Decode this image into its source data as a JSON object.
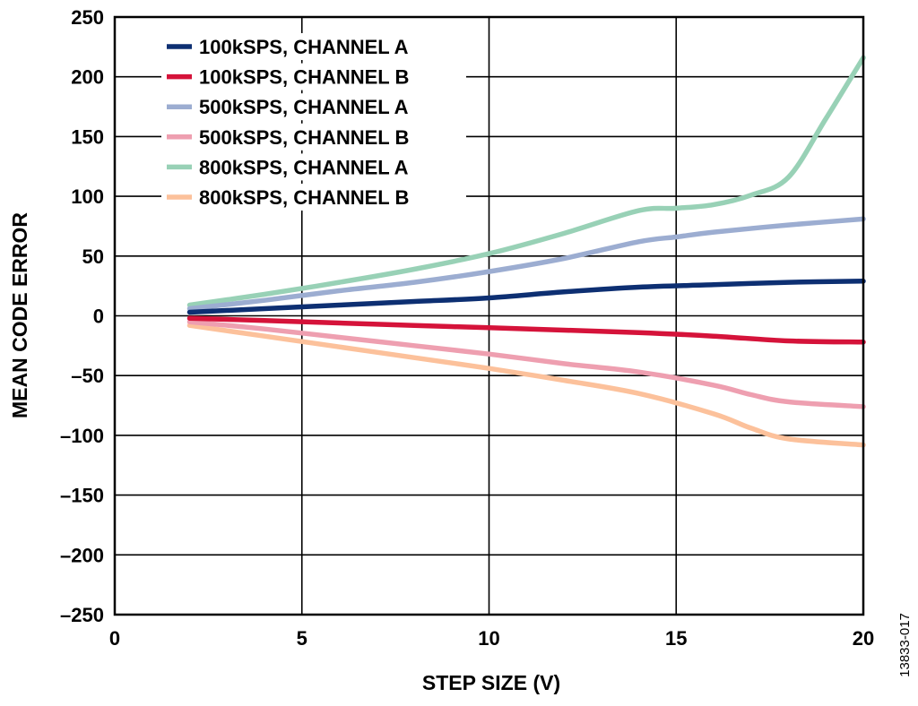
{
  "figure_id": "13833-017",
  "chart_data": {
    "type": "line",
    "xlabel": "STEP SIZE (V)",
    "ylabel": "MEAN CODE ERROR",
    "xlim": [
      0,
      20
    ],
    "ylim": [
      -250,
      250
    ],
    "xticks": [
      0,
      5,
      10,
      15,
      20
    ],
    "yticks": [
      250,
      200,
      150,
      100,
      50,
      0,
      -50,
      -100,
      -150,
      -200,
      -250
    ],
    "xtick_labels": [
      "0",
      "5",
      "10",
      "15",
      "20"
    ],
    "ytick_labels": [
      "250",
      "200",
      "150",
      "100",
      "50",
      "0",
      "–50",
      "–100",
      "–150",
      "–200",
      "–250"
    ],
    "grid": true,
    "legend_position": "top-left",
    "series": [
      {
        "name": "100kSPS, CHANNEL A",
        "color": "#0d2f72",
        "x": [
          2,
          4,
          6,
          8,
          10,
          12,
          14,
          16,
          18,
          20
        ],
        "y": [
          3,
          6,
          9,
          12,
          15,
          20,
          24,
          26,
          28,
          29
        ]
      },
      {
        "name": "100kSPS, CHANNEL B",
        "color": "#d5133a",
        "x": [
          2,
          4,
          6,
          8,
          10,
          12,
          14,
          16,
          18,
          20
        ],
        "y": [
          -2,
          -4,
          -6,
          -8,
          -10,
          -12,
          -14,
          -17,
          -21,
          -22
        ]
      },
      {
        "name": "500kSPS, CHANNEL A",
        "color": "#9cadd1",
        "x": [
          2,
          4,
          6,
          8,
          10,
          12,
          14,
          15,
          16,
          18,
          20
        ],
        "y": [
          6,
          13,
          21,
          28,
          37,
          48,
          62,
          66,
          70,
          76,
          81
        ]
      },
      {
        "name": "500kSPS, CHANNEL B",
        "color": "#ee9fb0",
        "x": [
          2,
          4,
          6,
          8,
          10,
          12,
          14,
          16,
          17,
          18,
          20
        ],
        "y": [
          -5,
          -11,
          -18,
          -25,
          -32,
          -40,
          -47,
          -58,
          -66,
          -72,
          -76
        ]
      },
      {
        "name": "800kSPS, CHANNEL A",
        "color": "#98d1b6",
        "x": [
          2,
          4,
          6,
          8,
          10,
          12,
          14,
          15,
          16,
          17,
          18,
          19,
          20
        ],
        "y": [
          9,
          18,
          28,
          39,
          52,
          69,
          88,
          90,
          93,
          101,
          116,
          165,
          216
        ]
      },
      {
        "name": "800kSPS, CHANNEL B",
        "color": "#fcc19b",
        "x": [
          2,
          4,
          6,
          8,
          10,
          12,
          14,
          16,
          17,
          18,
          20
        ],
        "y": [
          -8,
          -17,
          -26,
          -35,
          -44,
          -54,
          -65,
          -82,
          -94,
          -103,
          -108
        ]
      }
    ]
  }
}
